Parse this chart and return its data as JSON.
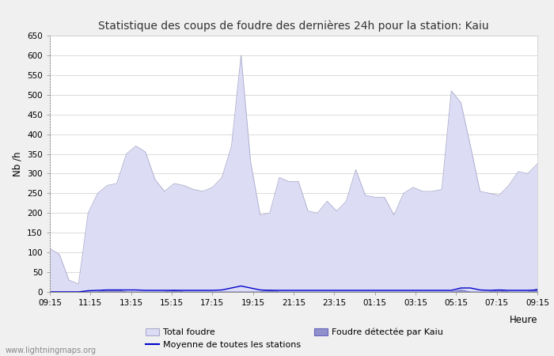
{
  "title": "Statistique des coups de foudre des dernières 24h pour la station: Kaiu",
  "xlabel": "Heure",
  "ylabel": "Nb /h",
  "ylim": [
    0,
    650
  ],
  "yticks": [
    0,
    50,
    100,
    150,
    200,
    250,
    300,
    350,
    400,
    450,
    500,
    550,
    600,
    650
  ],
  "x_labels": [
    "09:15",
    "11:15",
    "13:15",
    "15:15",
    "17:15",
    "19:15",
    "21:15",
    "23:15",
    "01:15",
    "03:15",
    "05:15",
    "07:15",
    "09:15"
  ],
  "background_color": "#f0f0f0",
  "plot_bg_color": "#ffffff",
  "grid_color": "#cccccc",
  "total_foudre_color": "#dcdcf5",
  "total_foudre_edge": "#aaaacc",
  "kaiu_color": "#9090cc",
  "kaiu_edge": "#6666bb",
  "moyenne_color": "#0000cc",
  "watermark": "www.lightningmaps.org",
  "legend_items": [
    "Total foudre",
    "Moyenne de toutes les stations",
    "Foudre détectée par Kaiu"
  ],
  "total_foudre": [
    110,
    95,
    30,
    20,
    200,
    250,
    270,
    275,
    350,
    370,
    355,
    285,
    255,
    275,
    270,
    260,
    255,
    265,
    290,
    370,
    600,
    330,
    195,
    200,
    290,
    280,
    280,
    205,
    200,
    230,
    205,
    230,
    310,
    245,
    240,
    240,
    195,
    250,
    265,
    255,
    255,
    260,
    510,
    480,
    370,
    255,
    250,
    245,
    270,
    305,
    300,
    325
  ],
  "kaiu": [
    0,
    0,
    0,
    0,
    0,
    0,
    5,
    5,
    0,
    0,
    0,
    0,
    0,
    5,
    0,
    0,
    0,
    0,
    0,
    0,
    0,
    0,
    0,
    5,
    0,
    0,
    0,
    0,
    0,
    0,
    0,
    0,
    0,
    0,
    0,
    0,
    0,
    0,
    0,
    0,
    0,
    0,
    0,
    5,
    0,
    0,
    0,
    5,
    0,
    0,
    0,
    8
  ],
  "moyenne": [
    0,
    0,
    0,
    0,
    3,
    4,
    5,
    5,
    5,
    5,
    4,
    4,
    4,
    4,
    4,
    4,
    4,
    4,
    5,
    10,
    15,
    10,
    5,
    4,
    4,
    4,
    4,
    4,
    4,
    4,
    4,
    4,
    4,
    4,
    4,
    4,
    4,
    4,
    4,
    4,
    4,
    4,
    4,
    10,
    10,
    5,
    4,
    5,
    4,
    4,
    4,
    5
  ],
  "n_points": 52
}
